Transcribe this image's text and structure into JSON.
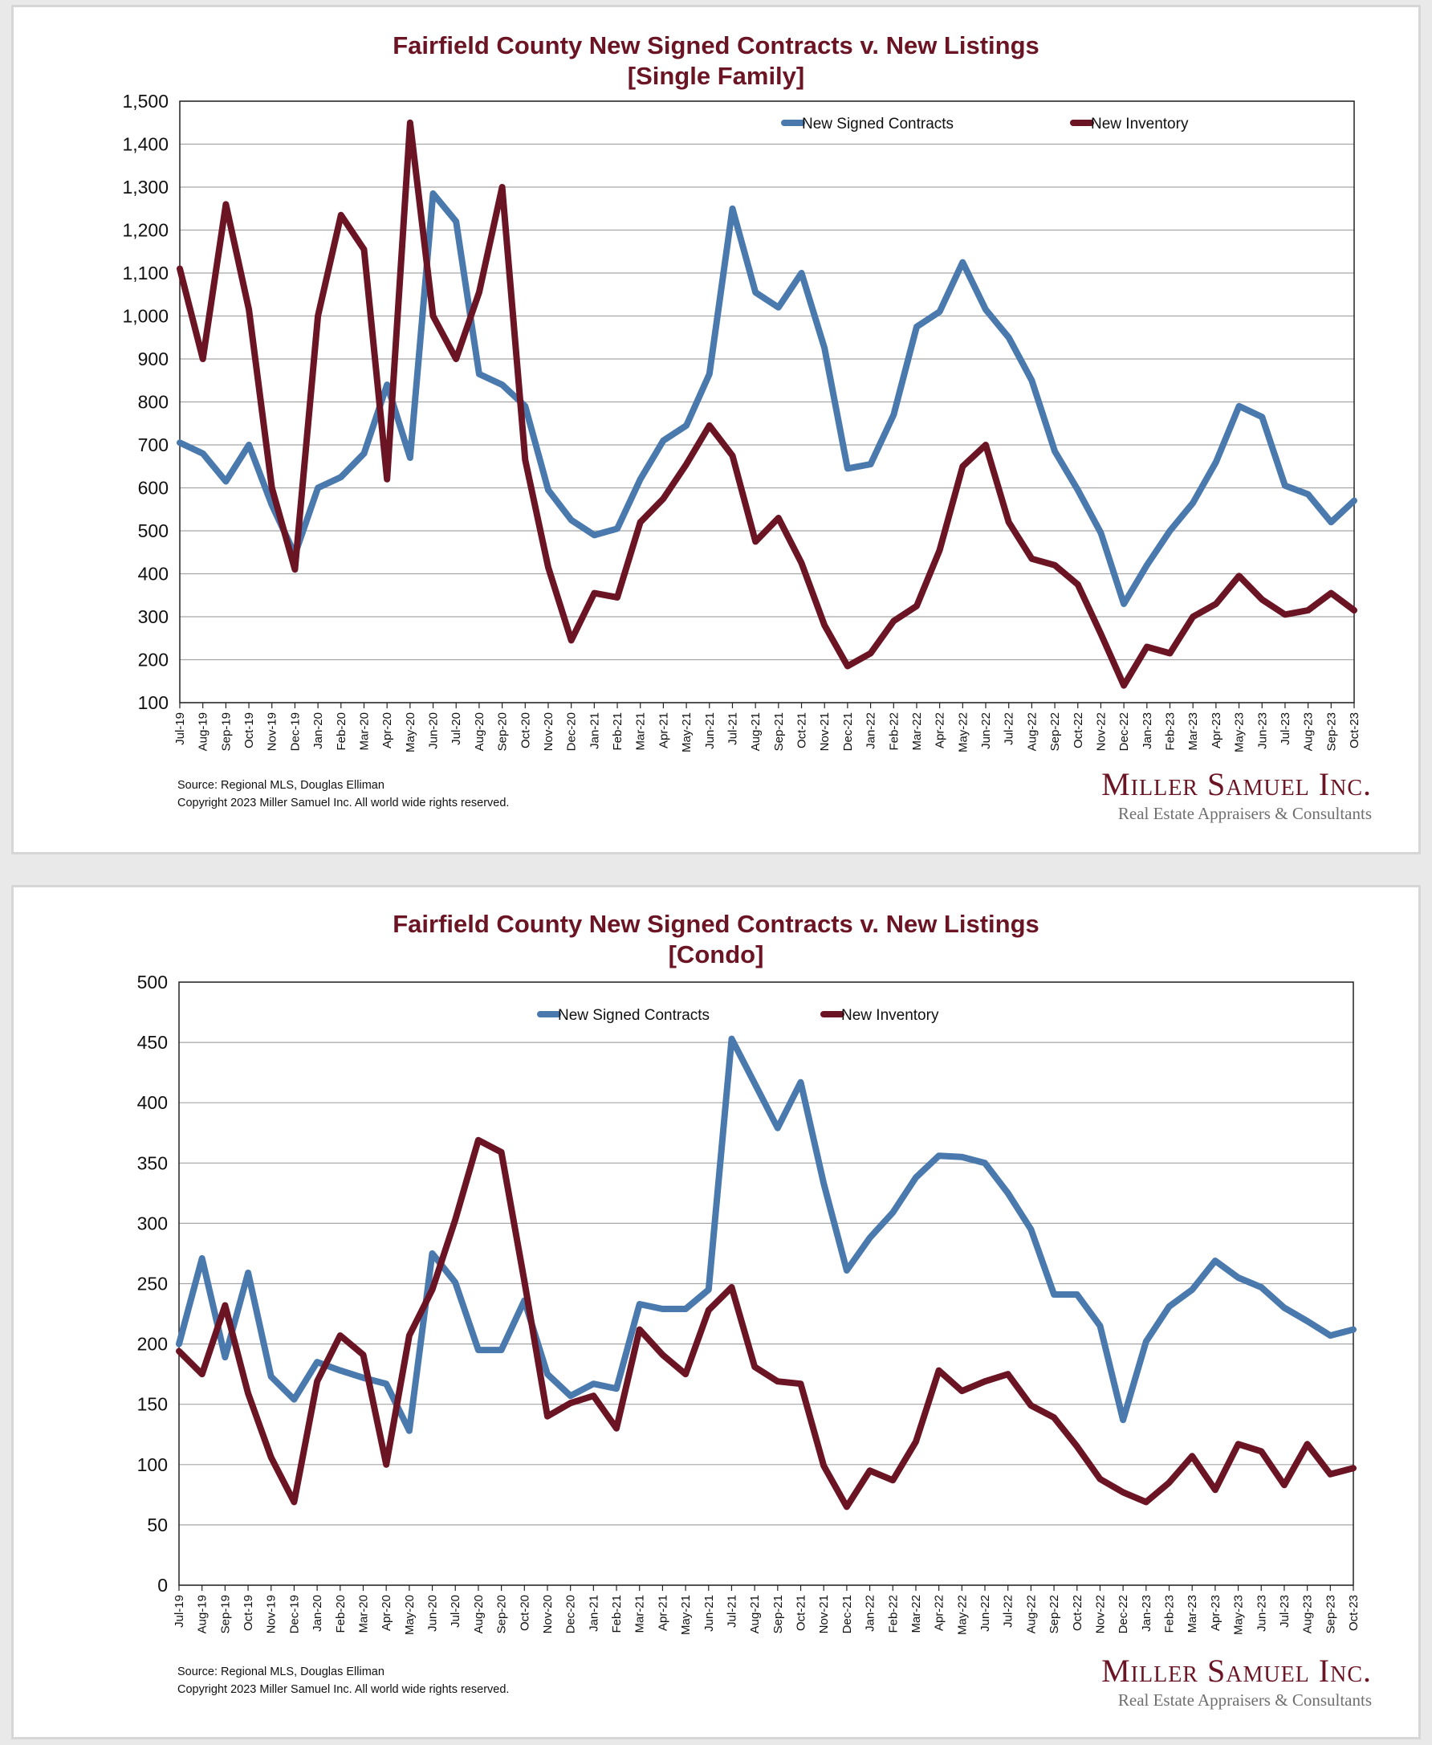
{
  "charts": [
    {
      "title_line1": "Fairfield County New Signed Contracts v. New Listings",
      "title_line2": "[Single Family]",
      "source_line1": "Source: Regional MLS, Douglas Elliman",
      "source_line2": "Copyright 2023 Miller Samuel Inc.  All world wide rights reserved.",
      "logo_name": "Miller Samuel Inc.",
      "logo_tagline": "Real Estate Appraisers & Consultants"
    },
    {
      "title_line1": "Fairfield County New Signed Contracts v. New Listings",
      "title_line2": "[Condo]",
      "source_line1": "Source: Regional MLS, Douglas Elliman",
      "source_line2": "Copyright 2023 Miller Samuel Inc.  All world wide rights reserved.",
      "logo_name": "Miller Samuel Inc.",
      "logo_tagline": "Real Estate Appraisers & Consultants"
    }
  ],
  "chart_data": [
    {
      "type": "line",
      "title": "Fairfield County New Signed Contracts v. New Listings [Single Family]",
      "xlabel": "",
      "ylabel": "",
      "ylim": [
        100,
        1500
      ],
      "yticks": [
        100,
        200,
        300,
        400,
        500,
        600,
        700,
        800,
        900,
        1000,
        1100,
        1200,
        1300,
        1400,
        1500
      ],
      "ytick_labels": [
        "100",
        "200",
        "300",
        "400",
        "500",
        "600",
        "700",
        "800",
        "900",
        "1,000",
        "1,100",
        "1,200",
        "1,300",
        "1,400",
        "1,500"
      ],
      "grid": true,
      "legend_position": "top-center",
      "categories": [
        "Jul-19",
        "Aug-19",
        "Sep-19",
        "Oct-19",
        "Nov-19",
        "Dec-19",
        "Jan-20",
        "Feb-20",
        "Mar-20",
        "Apr-20",
        "May-20",
        "Jun-20",
        "Jul-20",
        "Aug-20",
        "Sep-20",
        "Oct-20",
        "Nov-20",
        "Dec-20",
        "Jan-21",
        "Feb-21",
        "Mar-21",
        "Apr-21",
        "May-21",
        "Jun-21",
        "Jul-21",
        "Aug-21",
        "Sep-21",
        "Oct-21",
        "Nov-21",
        "Dec-21",
        "Jan-22",
        "Feb-22",
        "Mar-22",
        "Apr-22",
        "May-22",
        "Jun-22",
        "Jul-22",
        "Aug-22",
        "Sep-22",
        "Oct-22",
        "Nov-22",
        "Dec-22",
        "Jan-23",
        "Feb-23",
        "Mar-23",
        "Apr-23",
        "May-23",
        "Jun-23",
        "Jul-23",
        "Aug-23",
        "Sep-23",
        "Oct-23"
      ],
      "series": [
        {
          "name": "New Signed Contracts",
          "color": "#4a79ad",
          "values": [
            705,
            680,
            615,
            700,
            560,
            445,
            600,
            625,
            680,
            840,
            670,
            1285,
            1220,
            865,
            840,
            790,
            595,
            525,
            490,
            505,
            620,
            710,
            745,
            865,
            1250,
            1055,
            1020,
            1100,
            925,
            645,
            655,
            770,
            975,
            1010,
            1125,
            1015,
            950,
            850,
            685,
            595,
            495,
            330,
            420,
            500,
            565,
            660,
            790,
            765,
            605,
            585,
            520,
            570
          ]
        },
        {
          "name": "New Inventory",
          "color": "#6b1424",
          "values": [
            1110,
            900,
            1260,
            1015,
            600,
            410,
            1000,
            1235,
            1155,
            620,
            1450,
            1000,
            900,
            1055,
            1300,
            665,
            415,
            245,
            355,
            345,
            520,
            575,
            655,
            745,
            675,
            475,
            530,
            425,
            280,
            185,
            215,
            290,
            325,
            455,
            650,
            700,
            520,
            435,
            420,
            375,
            260,
            140,
            230,
            215,
            300,
            330,
            395,
            340,
            305,
            315,
            355,
            315
          ]
        }
      ]
    },
    {
      "type": "line",
      "title": "Fairfield County New Signed Contracts v. New Listings [Condo]",
      "xlabel": "",
      "ylabel": "",
      "ylim": [
        0,
        500
      ],
      "yticks": [
        0,
        50,
        100,
        150,
        200,
        250,
        300,
        350,
        400,
        450,
        500
      ],
      "ytick_labels": [
        "0",
        "50",
        "100",
        "150",
        "200",
        "250",
        "300",
        "350",
        "400",
        "450",
        "500"
      ],
      "grid": true,
      "legend_position": "top-center",
      "categories": [
        "Jul-19",
        "Aug-19",
        "Sep-19",
        "Oct-19",
        "Nov-19",
        "Dec-19",
        "Jan-20",
        "Feb-20",
        "Mar-20",
        "Apr-20",
        "May-20",
        "Jun-20",
        "Jul-20",
        "Aug-20",
        "Sep-20",
        "Oct-20",
        "Nov-20",
        "Dec-20",
        "Jan-21",
        "Feb-21",
        "Mar-21",
        "Apr-21",
        "May-21",
        "Jun-21",
        "Jul-21",
        "Aug-21",
        "Sep-21",
        "Oct-21",
        "Nov-21",
        "Dec-21",
        "Jan-22",
        "Feb-22",
        "Mar-22",
        "Apr-22",
        "May-22",
        "Jun-22",
        "Jul-22",
        "Aug-22",
        "Sep-22",
        "Oct-22",
        "Nov-22",
        "Dec-22",
        "Jan-23",
        "Feb-23",
        "Mar-23",
        "Apr-23",
        "May-23",
        "Jun-23",
        "Jul-23",
        "Aug-23",
        "Sep-23",
        "Oct-23"
      ],
      "series": [
        {
          "name": "New Signed Contracts",
          "color": "#4a79ad",
          "values": [
            200,
            271,
            189,
            259,
            173,
            154,
            185,
            178,
            172,
            167,
            128,
            275,
            251,
            195,
            195,
            236,
            175,
            157,
            167,
            163,
            233,
            229,
            229,
            245,
            453,
            416,
            379,
            417,
            333,
            261,
            288,
            309,
            338,
            356,
            355,
            350,
            325,
            295,
            241,
            241,
            215,
            137,
            202,
            231,
            245,
            269,
            255,
            247,
            230,
            219,
            207,
            212
          ]
        },
        {
          "name": "New Inventory",
          "color": "#6b1424",
          "values": [
            194,
            175,
            232,
            159,
            106,
            69,
            169,
            207,
            191,
            100,
            207,
            245,
            303,
            369,
            359,
            252,
            140,
            151,
            157,
            130,
            212,
            191,
            175,
            228,
            247,
            181,
            169,
            167,
            99,
            65,
            95,
            87,
            119,
            178,
            161,
            169,
            175,
            149,
            139,
            115,
            88,
            77,
            69,
            85,
            107,
            79,
            117,
            111,
            83,
            117,
            92,
            97
          ]
        }
      ]
    }
  ]
}
